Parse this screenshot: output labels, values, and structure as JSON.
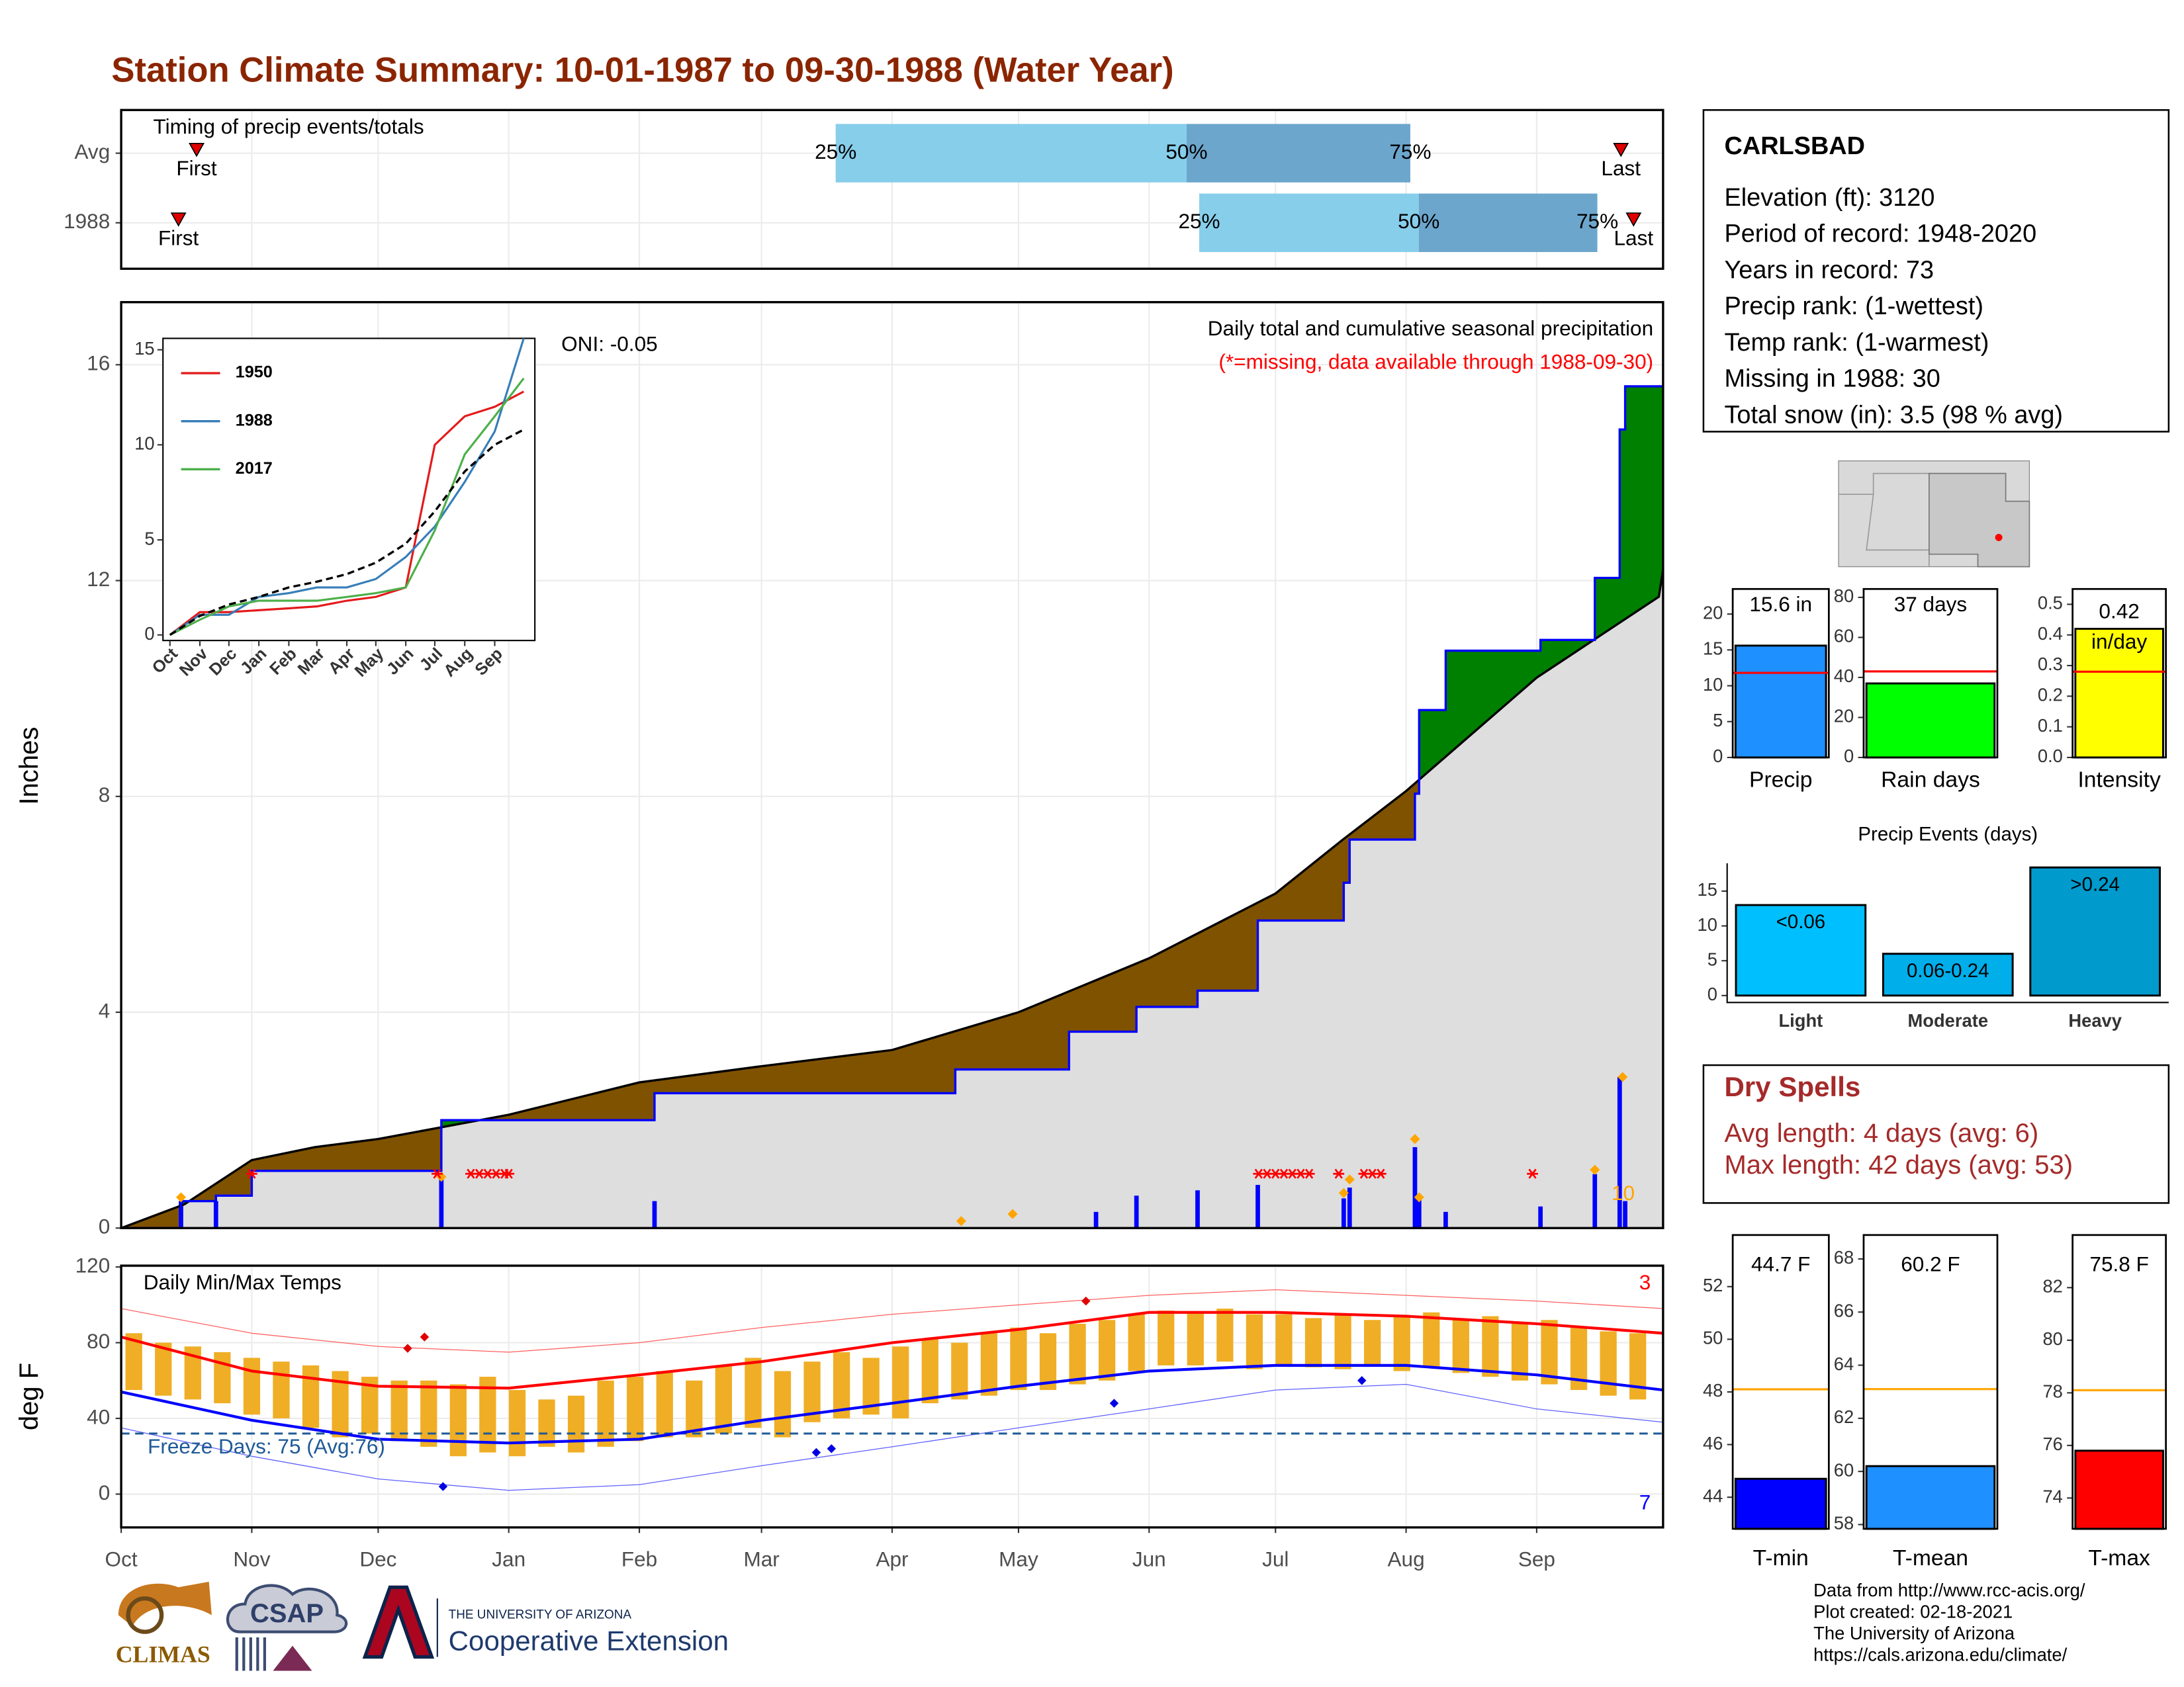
{
  "title": "Station Climate Summary: 10-01-1987 to 09-30-1988 (Water Year)",
  "station": {
    "name": "CARLSBAD",
    "lines": [
      "Elevation (ft): 3120",
      "Period of record: 1948-2020",
      "Years in record: 73",
      "Precip rank:  (1-wettest)",
      "Temp rank:  (1-warmest)",
      "Missing in 1988: 30",
      "Total snow (in): 3.5 (98 % avg)"
    ]
  },
  "dry_spells": {
    "title": "Dry Spells",
    "lines": [
      "Avg length: 4 days (avg: 6)",
      "Max length: 42 days (avg: 53)"
    ]
  },
  "footer": {
    "credits": [
      "Data from http://www.rcc-acis.org/",
      "Plot created: 02-18-2021",
      "The University of Arizona",
      "https://cals.arizona.edu/climate/"
    ],
    "logos": [
      "CLIMAS",
      "CSAP",
      "THE UNIVERSITY OF ARIZONA",
      "Cooperative Extension"
    ]
  },
  "chart_data": [
    {
      "type": "timeline",
      "title": "Timing of precip events/totals",
      "categories": [
        "Avg",
        "1988"
      ],
      "xlim": [
        0,
        366
      ],
      "series": [
        {
          "name": "First",
          "values": [
            17.9,
            13.6
          ]
        },
        {
          "name": "25%",
          "values": [
            169.6,
            255.9
          ]
        },
        {
          "name": "50%",
          "values": [
            252.9,
            308
          ]
        },
        {
          "name": "75%",
          "values": [
            306,
            350.4
          ]
        },
        {
          "name": "Last",
          "values": [
            356,
            359
          ]
        }
      ],
      "colors": [
        "#87ceeb",
        "#6ca6cd"
      ],
      "marker_color": "#e00000"
    },
    {
      "type": "area",
      "title": "Daily total and cumulative seasonal precipitation",
      "subtitle": "(*=missing, data available through 1988-09-30)",
      "annotation": "ONI: -0.05",
      "count_label": "10",
      "y_label": "Inches",
      "xlim": [
        0,
        366
      ],
      "ylim": [
        0,
        17.16
      ],
      "yticks": [
        0,
        4,
        8,
        12,
        16
      ],
      "grid": true,
      "normal": {
        "color": "#000000",
        "fill": "#dedede",
        "x": [
          0,
          15,
          31,
          46,
          61,
          92,
          123,
          152,
          183,
          213,
          244,
          274,
          290,
          305,
          336,
          365,
          366
        ],
        "values": [
          0,
          0.44,
          1.26,
          1.5,
          1.65,
          2.1,
          2.7,
          3.0,
          3.3,
          4.0,
          5.0,
          6.2,
          7.2,
          8.1,
          10.2,
          11.7,
          12.2
        ]
      },
      "observed": {
        "color": "#0000ff",
        "x": [
          0,
          14.2,
          14.2,
          22.5,
          22.5,
          31,
          31,
          76,
          76,
          126.6,
          126.6,
          198,
          198,
          225,
          225,
          241,
          241,
          255.5,
          255.5,
          269.8,
          269.8,
          290.2,
          290.2,
          291.6,
          291.6,
          307.1,
          307.1,
          308.1,
          308.1,
          314.4,
          314.4,
          336.9,
          336.9,
          349.8,
          349.8,
          355.7,
          355.7,
          357,
          357,
          366
        ],
        "values": [
          0,
          0,
          0.5,
          0.5,
          0.6,
          0.6,
          1.06,
          1.06,
          2.0,
          2.0,
          2.5,
          2.5,
          2.94,
          2.94,
          3.64,
          3.64,
          4.1,
          4.1,
          4.4,
          4.4,
          5.7,
          5.7,
          6.4,
          6.4,
          7.2,
          7.2,
          8.05,
          8.05,
          9.6,
          9.6,
          10.7,
          10.7,
          10.9,
          10.9,
          12.05,
          12.05,
          14.8,
          14.8,
          15.6,
          15.6
        ]
      },
      "above_color": "#008000",
      "below_color": "#7f5200",
      "daily": {
        "color": "#0000ff",
        "x": [
          14.2,
          22.5,
          76,
          126.6,
          231.4,
          241,
          255.5,
          269.8,
          290.2,
          291.6,
          307.1,
          308.1,
          314.4,
          336.9,
          349.8,
          355.7,
          357
        ],
        "values": [
          0.5,
          0.5,
          0.95,
          0.5,
          0.3,
          0.6,
          0.7,
          0.8,
          0.55,
          0.75,
          1.5,
          0.6,
          0.3,
          0.4,
          1.0,
          2.8,
          0.5
        ]
      },
      "markers": {
        "color": "#ffa500",
        "x": [
          14.2,
          76,
          199.4,
          211.6,
          290.2,
          291.6,
          307.1,
          308.1,
          349.8,
          356.4
        ],
        "values": [
          0.57,
          0.95,
          0.13,
          0.26,
          0.65,
          0.9,
          1.65,
          0.57,
          1.08,
          2.8
        ]
      },
      "missing": {
        "color": "#ff0000",
        "x": [
          31,
          75,
          83,
          85,
          87,
          89,
          91,
          92,
          270,
          272,
          274,
          276,
          278,
          280,
          282,
          289,
          295,
          297,
          299,
          335
        ]
      }
    },
    {
      "type": "line",
      "xlim": [
        0,
        366
      ],
      "ylim": [
        0,
        15.6
      ],
      "yticks": [
        0,
        5,
        10,
        15
      ],
      "xticks": [
        {
          "value": 0,
          "label": "Oct"
        },
        {
          "value": 31,
          "label": "Nov"
        },
        {
          "value": 61,
          "label": "Dec"
        },
        {
          "value": 92,
          "label": "Jan"
        },
        {
          "value": 123,
          "label": "Feb"
        },
        {
          "value": 152,
          "label": "Mar"
        },
        {
          "value": 183,
          "label": "Apr"
        },
        {
          "value": 213,
          "label": "May"
        },
        {
          "value": 244,
          "label": "Jun"
        },
        {
          "value": 274,
          "label": "Jul"
        },
        {
          "value": 305,
          "label": "Aug"
        },
        {
          "value": 336,
          "label": "Sep"
        }
      ],
      "x": [
        0,
        31,
        61,
        92,
        123,
        152,
        183,
        213,
        244,
        274,
        305,
        336,
        366
      ],
      "series": [
        {
          "name": "1950",
          "color": "#e41a1c",
          "values": [
            0,
            1.2,
            1.2,
            1.3,
            1.4,
            1.5,
            1.8,
            2.0,
            2.5,
            10.0,
            11.5,
            12.0,
            12.8
          ]
        },
        {
          "name": "1988",
          "color": "#377eb8",
          "values": [
            0,
            1.06,
            1.06,
            2.0,
            2.2,
            2.5,
            2.5,
            2.94,
            4.1,
            5.7,
            8.05,
            10.7,
            15.6
          ]
        },
        {
          "name": "2017",
          "color": "#4daf4a",
          "values": [
            0,
            0.8,
            1.5,
            1.8,
            1.8,
            1.8,
            2.0,
            2.2,
            2.5,
            5.5,
            9.5,
            11.5,
            13.5
          ]
        }
      ],
      "normal": {
        "color": "#000000",
        "values": [
          0,
          1.0,
          1.6,
          2.0,
          2.5,
          2.8,
          3.2,
          3.8,
          4.8,
          6.5,
          8.6,
          10.0,
          10.8
        ]
      }
    },
    {
      "type": "range",
      "title": "Daily Min/Max Temps",
      "y_label": "deg F",
      "annotation": "Freeze Days: 75 (Avg:76)",
      "high_count": "3",
      "low_count": "7",
      "xlim": [
        0,
        366
      ],
      "ylim": [
        -17.6,
        120.7
      ],
      "yticks": [
        0,
        40,
        80,
        120
      ],
      "grid": true,
      "xticks": [
        {
          "value": 0,
          "label": "Oct"
        },
        {
          "value": 31,
          "label": "Nov"
        },
        {
          "value": 61,
          "label": "Dec"
        },
        {
          "value": 92,
          "label": "Jan"
        },
        {
          "value": 123,
          "label": "Feb"
        },
        {
          "value": 152,
          "label": "Mar"
        },
        {
          "value": 183,
          "label": "Apr"
        },
        {
          "value": 213,
          "label": "May"
        },
        {
          "value": 244,
          "label": "Jun"
        },
        {
          "value": 274,
          "label": "Jul"
        },
        {
          "value": 305,
          "label": "Aug"
        },
        {
          "value": 336,
          "label": "Sep"
        }
      ],
      "bar_color": "#efae25",
      "x": [
        3,
        10,
        17,
        24,
        31,
        38,
        45,
        52,
        59,
        66,
        73,
        80,
        87,
        94,
        101,
        108,
        115,
        122,
        129,
        136,
        143,
        150,
        157,
        164,
        171,
        178,
        185,
        192,
        199,
        206,
        213,
        220,
        227,
        234,
        241,
        248,
        255,
        262,
        269,
        276,
        283,
        290,
        297,
        304,
        311,
        318,
        325,
        332,
        339,
        346,
        353,
        360
      ],
      "highs": [
        85,
        80,
        78,
        75,
        72,
        70,
        68,
        65,
        62,
        60,
        60,
        58,
        62,
        55,
        50,
        52,
        60,
        62,
        65,
        60,
        68,
        72,
        65,
        70,
        75,
        72,
        78,
        82,
        80,
        85,
        88,
        85,
        90,
        92,
        95,
        97,
        96,
        98,
        95,
        95,
        93,
        95,
        92,
        94,
        96,
        92,
        94,
        90,
        92,
        88,
        86,
        85
      ],
      "lows": [
        55,
        52,
        50,
        48,
        42,
        40,
        35,
        30,
        32,
        28,
        25,
        20,
        22,
        20,
        25,
        22,
        25,
        28,
        30,
        30,
        32,
        35,
        30,
        38,
        40,
        42,
        40,
        48,
        50,
        52,
        55,
        55,
        58,
        60,
        65,
        68,
        68,
        70,
        66,
        68,
        67,
        66,
        68,
        65,
        67,
        64,
        62,
        60,
        58,
        55,
        52,
        50
      ],
      "line_x": [
        0,
        31,
        61,
        92,
        123,
        152,
        183,
        213,
        244,
        274,
        305,
        336,
        366
      ],
      "normal_high": {
        "color": "#ff0000",
        "values": [
          83,
          65,
          57,
          56,
          63,
          70,
          80,
          87,
          96,
          96,
          94,
          90,
          85
        ]
      },
      "normal_low": {
        "color": "#0000ff",
        "values": [
          54,
          39,
          29,
          27,
          29,
          39,
          48,
          57,
          65,
          68,
          68,
          63,
          55
        ]
      },
      "record_high": {
        "color": "#ff6060",
        "values": [
          98,
          85,
          78,
          75,
          80,
          88,
          95,
          100,
          105,
          108,
          105,
          102,
          98
        ]
      },
      "record_low": {
        "color": "#6060ff",
        "values": [
          35,
          20,
          8,
          2,
          5,
          15,
          25,
          35,
          45,
          55,
          58,
          45,
          38
        ]
      },
      "record_high_days": {
        "color": "#e00000",
        "x": [
          68,
          72,
          229
        ],
        "values": [
          77,
          83,
          102
        ]
      },
      "record_low_days": {
        "color": "#0000e0",
        "x": [
          76.4,
          165,
          168.6,
          235.7,
          294.5
        ],
        "values": [
          4,
          22,
          24,
          48,
          60
        ]
      },
      "freeze_threshold": 32,
      "freeze_color": "#1f5a96"
    },
    {
      "type": "bar",
      "categories": [
        "Precip"
      ],
      "values": [
        15.6
      ],
      "value_labels": [
        "15.6 in"
      ],
      "average": 11.8,
      "average_color": "#ff0000",
      "color": "#1e90ff",
      "ylim": [
        0,
        23.5
      ],
      "yticks": [
        0,
        5,
        10,
        15,
        20
      ]
    },
    {
      "type": "bar",
      "categories": [
        "Rain days"
      ],
      "values": [
        37
      ],
      "value_labels": [
        "37 days"
      ],
      "average": 43,
      "average_color": "#ff0000",
      "color": "#00ff00",
      "ylim": [
        0,
        84.2
      ],
      "yticks": [
        0,
        20,
        40,
        60,
        80
      ]
    },
    {
      "type": "bar",
      "categories": [
        "Intensity"
      ],
      "values": [
        0.42
      ],
      "unit_label": "in/day",
      "average": 0.28,
      "average_color": "#ff0000",
      "color": "#ffff00",
      "ylim": [
        0,
        0.55
      ],
      "yticks": [
        {
          "value": 0,
          "label": "0.0"
        },
        0.1,
        0.2,
        0.3,
        0.4,
        0.5
      ]
    },
    {
      "type": "bar",
      "title": "Precip Events (days)",
      "categories": [
        "Light",
        "Moderate",
        "Heavy"
      ],
      "values": [
        13,
        6,
        18.4
      ],
      "bin_labels": [
        "<0.06",
        "0.06-0.24",
        ">0.24"
      ],
      "colors": [
        "#00bfff",
        "#00aeea",
        "#009acd"
      ],
      "ylim": [
        -1,
        19
      ],
      "yticks": [
        0,
        5,
        10,
        15
      ]
    },
    {
      "type": "bar",
      "categories": [
        "T-min"
      ],
      "values": [
        44.7
      ],
      "value_labels": [
        "44.7 F"
      ],
      "average": 48.1,
      "average_color": "#ffa500",
      "color": "#0000ff",
      "ylim": [
        42.8,
        53.96
      ],
      "yticks": [
        44,
        46,
        48,
        50,
        52
      ]
    },
    {
      "type": "bar",
      "categories": [
        "T-mean"
      ],
      "values": [
        60.2
      ],
      "value_labels": [
        "60.2 F"
      ],
      "average": 63.1,
      "average_color": "#ffa500",
      "color": "#1e90ff",
      "ylim": [
        57.84,
        68.9
      ],
      "yticks": [
        58,
        60,
        62,
        64,
        66,
        68
      ]
    },
    {
      "type": "bar",
      "categories": [
        "T-max"
      ],
      "values": [
        75.8
      ],
      "value_labels": [
        "75.8 F"
      ],
      "average": 78.1,
      "average_color": "#ffa500",
      "color": "#ff0000",
      "ylim": [
        72.83,
        84.0
      ],
      "yticks": [
        74,
        76,
        78,
        80,
        82
      ]
    }
  ]
}
